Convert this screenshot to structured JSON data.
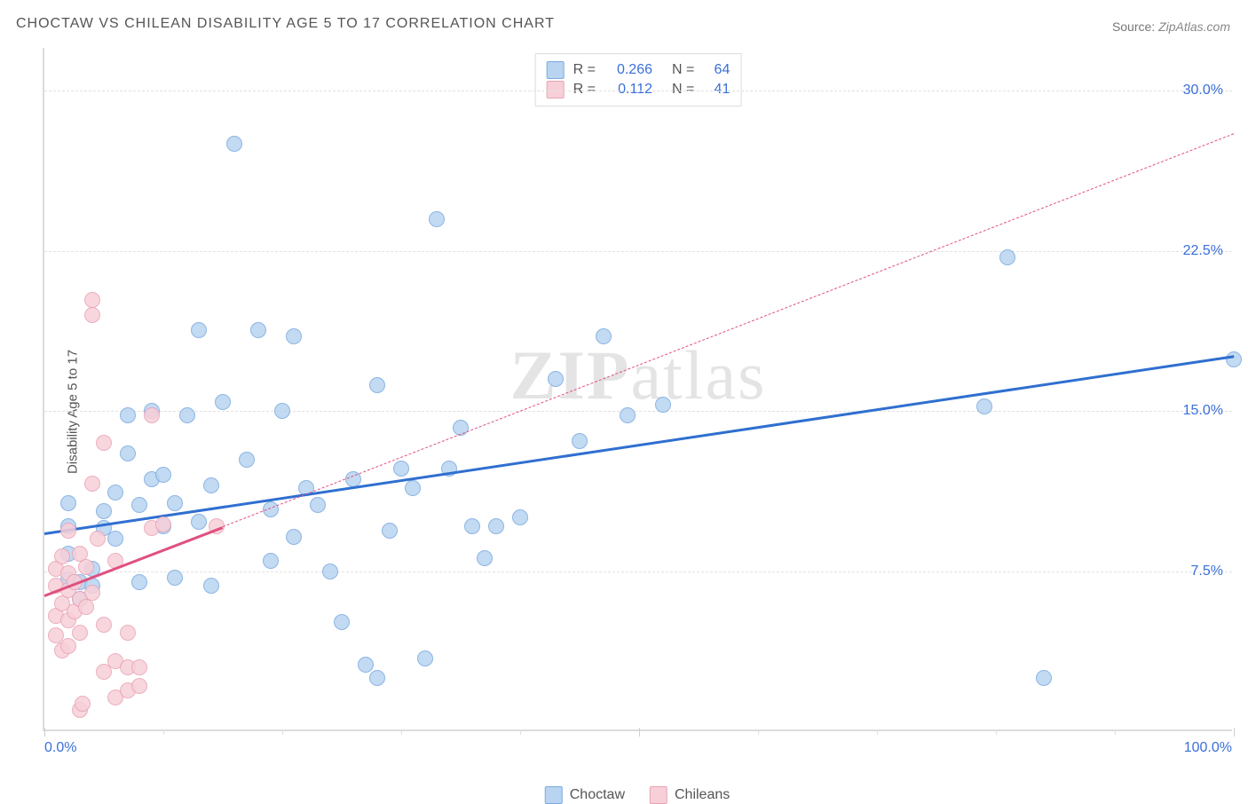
{
  "title": "CHOCTAW VS CHILEAN DISABILITY AGE 5 TO 17 CORRELATION CHART",
  "source_label": "Source:",
  "source_value": "ZipAtlas.com",
  "ylabel": "Disability Age 5 to 17",
  "watermark": "ZIPatlas",
  "chart": {
    "xlim": [
      0,
      100
    ],
    "ylim": [
      0,
      32
    ],
    "x_start_label": "0.0%",
    "x_end_label": "100.0%",
    "y_gridlines": [
      7.5,
      15.0,
      22.5,
      30.0
    ],
    "y_tick_labels": [
      "7.5%",
      "15.0%",
      "22.5%",
      "30.0%"
    ],
    "x_major_ticks": [
      0,
      50,
      100
    ],
    "x_minor_step": 10,
    "series": [
      {
        "name": "Choctaw",
        "fill": "#b8d4f0",
        "stroke": "#7aa9e0",
        "line_color": "#2f6fd0",
        "line_dash": "solid",
        "R": "0.266",
        "N": "64",
        "trend_from": [
          0,
          9.3
        ],
        "trend_to": [
          100,
          17.6
        ],
        "marker_radius": 9,
        "points": [
          [
            2,
            9.6
          ],
          [
            2,
            8.3
          ],
          [
            2,
            10.7
          ],
          [
            2,
            7.1
          ],
          [
            3,
            7.0
          ],
          [
            3,
            6.2
          ],
          [
            4,
            6.8
          ],
          [
            4,
            7.6
          ],
          [
            5,
            9.5
          ],
          [
            5,
            10.3
          ],
          [
            6,
            11.2
          ],
          [
            6,
            9.0
          ],
          [
            7,
            13.0
          ],
          [
            7,
            14.8
          ],
          [
            8,
            10.6
          ],
          [
            8,
            7.0
          ],
          [
            9,
            11.8
          ],
          [
            9,
            15.0
          ],
          [
            10,
            9.6
          ],
          [
            10,
            12.0
          ],
          [
            11,
            7.2
          ],
          [
            11,
            10.7
          ],
          [
            12,
            14.8
          ],
          [
            13,
            9.8
          ],
          [
            13,
            18.8
          ],
          [
            14,
            11.5
          ],
          [
            14,
            6.8
          ],
          [
            15,
            15.4
          ],
          [
            16,
            27.5
          ],
          [
            17,
            12.7
          ],
          [
            18,
            18.8
          ],
          [
            19,
            10.4
          ],
          [
            19,
            8.0
          ],
          [
            20,
            15.0
          ],
          [
            21,
            9.1
          ],
          [
            21,
            18.5
          ],
          [
            22,
            11.4
          ],
          [
            23,
            10.6
          ],
          [
            24,
            7.5
          ],
          [
            25,
            5.1
          ],
          [
            26,
            11.8
          ],
          [
            27,
            3.1
          ],
          [
            28,
            16.2
          ],
          [
            28,
            2.5
          ],
          [
            29,
            9.4
          ],
          [
            30,
            12.3
          ],
          [
            31,
            11.4
          ],
          [
            32,
            3.4
          ],
          [
            33,
            24.0
          ],
          [
            34,
            12.3
          ],
          [
            35,
            14.2
          ],
          [
            36,
            9.6
          ],
          [
            37,
            8.1
          ],
          [
            38,
            9.6
          ],
          [
            40,
            10.0
          ],
          [
            43,
            16.5
          ],
          [
            45,
            13.6
          ],
          [
            47,
            18.5
          ],
          [
            49,
            14.8
          ],
          [
            52,
            15.3
          ],
          [
            79,
            15.2
          ],
          [
            81,
            22.2
          ],
          [
            84,
            2.5
          ],
          [
            100,
            17.4
          ]
        ]
      },
      {
        "name": "Chileans",
        "fill": "#f7cfd9",
        "stroke": "#e8a3b4",
        "line_color": "#e05080",
        "line_dash": "solid",
        "R": "0.112",
        "N": "41",
        "trend_from": [
          0,
          6.4
        ],
        "trend_to": [
          15,
          9.6
        ],
        "trend_extend_from": [
          15,
          9.6
        ],
        "trend_extend_to": [
          100,
          28.0
        ],
        "marker_radius": 9,
        "points": [
          [
            1,
            6.8
          ],
          [
            1,
            5.4
          ],
          [
            1,
            7.6
          ],
          [
            1,
            4.5
          ],
          [
            1.5,
            6.0
          ],
          [
            1.5,
            8.2
          ],
          [
            1.5,
            3.8
          ],
          [
            2,
            6.6
          ],
          [
            2,
            5.2
          ],
          [
            2,
            7.4
          ],
          [
            2,
            9.4
          ],
          [
            2,
            4.0
          ],
          [
            2.5,
            7.0
          ],
          [
            2.5,
            5.6
          ],
          [
            3,
            6.2
          ],
          [
            3,
            8.3
          ],
          [
            3,
            4.6
          ],
          [
            3,
            1.0
          ],
          [
            3.2,
            1.3
          ],
          [
            3.5,
            5.8
          ],
          [
            3.5,
            7.7
          ],
          [
            4,
            6.5
          ],
          [
            4,
            11.6
          ],
          [
            4,
            20.2
          ],
          [
            4,
            19.5
          ],
          [
            4.5,
            9.0
          ],
          [
            5,
            5.0
          ],
          [
            5,
            2.8
          ],
          [
            5,
            13.5
          ],
          [
            6,
            3.3
          ],
          [
            6,
            8.0
          ],
          [
            6,
            1.6
          ],
          [
            7,
            1.9
          ],
          [
            7,
            4.6
          ],
          [
            7,
            3.0
          ],
          [
            8,
            3.0
          ],
          [
            8,
            2.1
          ],
          [
            9,
            14.8
          ],
          [
            9,
            9.5
          ],
          [
            10,
            9.7
          ],
          [
            14.5,
            9.6
          ]
        ]
      }
    ]
  },
  "legend": {
    "items": [
      {
        "label": "Choctaw",
        "fill": "#b8d4f0",
        "stroke": "#7aa9e0"
      },
      {
        "label": "Chileans",
        "fill": "#f7cfd9",
        "stroke": "#e8a3b4"
      }
    ]
  }
}
